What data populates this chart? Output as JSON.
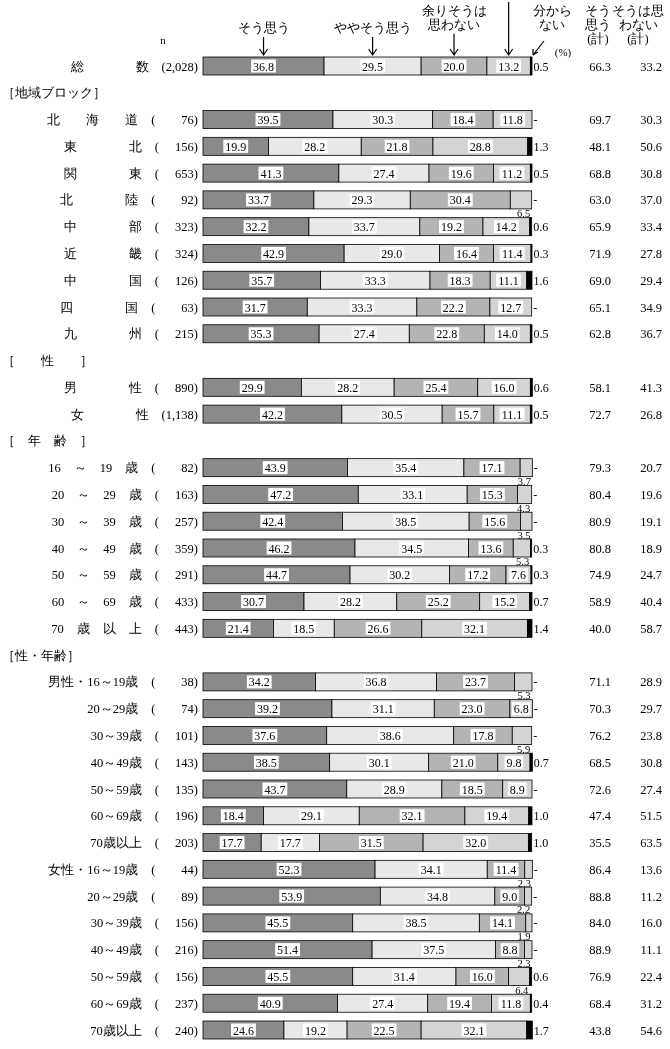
{
  "chart_data": {
    "type": "bar",
    "orientation": "horizontal",
    "stacked": true,
    "legend": "top",
    "xlim": [
      0,
      100
    ],
    "categories": [
      "総　　　　数　(2,028)",
      null,
      "北　　海　　道　(　　76)",
      "東　　　　北　(　 156)",
      "関　　　　東　(　 653)",
      "北　　　　陸　(　　92)",
      "中　　　　部　(　 323)",
      "近　　　　畿　(　 324)",
      "中　　　　国　(　 126)",
      "四　　　　国　(　　63)",
      "九　　　　州　(　 215)",
      null,
      "男　　　　性　(　 890)",
      "女　　　　性　(1,138)",
      null,
      "16　～　19　歳　(　　82)",
      "20　～　29　歳　(　 163)",
      "30　～　39　歳　(　 257)",
      "40　～　49　歳　(　 359)",
      "50　～　59　歳　(　 291)",
      "60　～　69　歳　(　 433)",
      "70　歳　以　上　(　 443)",
      null,
      "男性・16～19歳　(　　38)",
      "20～29歳　(　　74)",
      "30～39歳　(　 101)",
      "40～49歳　(　 143)",
      "50～59歳　(　 135)",
      "60～69歳　(　 196)",
      "70歳以上　(　 203)",
      "女性・16～19歳　(　　44)",
      "20～29歳　(　　89)",
      "30～39歳　(　 156)",
      "40～49歳　(　 216)",
      "50～59歳　(　 156)",
      "60～69歳　(　 237)",
      "70歳以上　(　 240)"
    ],
    "series": [
      {
        "name": "そう思う",
        "color": "#8a8a8a",
        "values": [
          36.8,
          null,
          39.5,
          19.9,
          41.3,
          33.7,
          32.2,
          42.9,
          35.7,
          31.7,
          35.3,
          null,
          29.9,
          42.2,
          null,
          43.9,
          47.2,
          42.4,
          46.2,
          44.7,
          30.7,
          21.4,
          null,
          34.2,
          39.2,
          37.6,
          38.5,
          43.7,
          18.4,
          17.7,
          52.3,
          53.9,
          45.5,
          51.4,
          45.5,
          40.9,
          24.6
        ],
        "value_labels": [
          "36.8",
          null,
          "39.5",
          "19.9",
          "41.3",
          "33.7",
          "32.2",
          "42.9",
          "35.7",
          "31.7",
          "35.3",
          null,
          "29.9",
          "42.2",
          null,
          "43.9",
          "47.2",
          "42.4",
          "46.2",
          "44.7",
          "30.7",
          "21.4",
          null,
          "34.2",
          "39.2",
          "37.6",
          "38.5",
          "43.7",
          "18.4",
          "17.7",
          "52.3",
          "53.9",
          "45.5",
          "51.4",
          "45.5",
          "40.9",
          "24.6"
        ]
      },
      {
        "name": "ややそう思う",
        "color": "#e8e8e8",
        "values": [
          29.5,
          null,
          30.3,
          28.2,
          27.4,
          29.3,
          33.7,
          29.0,
          33.3,
          33.3,
          27.4,
          null,
          28.2,
          30.5,
          null,
          35.4,
          33.1,
          38.5,
          34.5,
          30.2,
          28.2,
          18.5,
          null,
          36.8,
          31.1,
          38.6,
          30.1,
          28.9,
          29.1,
          17.7,
          34.1,
          34.8,
          38.5,
          37.5,
          31.4,
          27.4,
          19.2
        ],
        "value_labels": [
          "29.5",
          null,
          "30.3",
          "28.2",
          "27.4",
          "29.3",
          "33.7",
          "29.0",
          "33.3",
          "33.3",
          "27.4",
          null,
          "28.2",
          "30.5",
          null,
          "35.4",
          "33.1",
          "38.5",
          "34.5",
          "30.2",
          "28.2",
          "18.5",
          null,
          "36.8",
          "31.1",
          "38.6",
          "30.1",
          "28.9",
          "29.1",
          "17.7",
          "34.1",
          "34.8",
          "38.5",
          "37.5",
          "31.4",
          "27.4",
          "19.2"
        ]
      },
      {
        "name": "余りそうは思わない",
        "color": "#b4b4b4",
        "values": [
          20.0,
          null,
          18.4,
          21.8,
          19.6,
          30.4,
          19.2,
          16.4,
          18.3,
          22.2,
          22.8,
          null,
          25.4,
          15.7,
          null,
          17.1,
          15.3,
          15.6,
          13.6,
          17.2,
          25.2,
          26.6,
          null,
          23.7,
          23.0,
          17.8,
          21.0,
          18.5,
          32.1,
          31.5,
          11.4,
          9.0,
          14.1,
          8.8,
          16.0,
          19.4,
          22.5
        ],
        "value_labels": [
          "20.0",
          null,
          "18.4",
          "21.8",
          "19.6",
          "30.4",
          "19.2",
          "16.4",
          "18.3",
          "22.2",
          "22.8",
          null,
          "25.4",
          "15.7",
          null,
          "17.1",
          "15.3",
          "15.6",
          "13.6",
          "17.2",
          "25.2",
          "26.6",
          null,
          "23.7",
          "23.0",
          "17.8",
          "21.0",
          "18.5",
          "32.1",
          "31.5",
          "11.4",
          "9.0",
          "14.1",
          "8.8",
          "16.0",
          "19.4",
          "22.5"
        ]
      },
      {
        "color": "#d4d4d4",
        "values": [
          13.2,
          null,
          11.8,
          28.8,
          11.2,
          6.5,
          14.2,
          11.4,
          11.1,
          12.7,
          14.0,
          null,
          16.0,
          11.1,
          null,
          3.7,
          4.3,
          3.5,
          5.3,
          7.6,
          15.2,
          32.1,
          null,
          5.3,
          6.8,
          5.9,
          9.8,
          8.9,
          19.4,
          32.0,
          2.3,
          2.2,
          1.9,
          2.3,
          6.4,
          11.8,
          32.1
        ],
        "value_labels": [
          "13.2",
          null,
          "11.8",
          "28.8",
          "11.2",
          "6.5",
          "14.2",
          "11.4",
          "11.1",
          "12.7",
          "14.0",
          null,
          "16.0",
          "11.1",
          null,
          "3.7",
          "4.3",
          "3.5",
          "5.3",
          "7.6",
          "15.2",
          "32.1",
          null,
          "5.3",
          "6.8",
          "5.9",
          "9.8",
          "8.9",
          "19.4",
          "32.0",
          "2.3",
          "2.2",
          "1.9",
          "2.3",
          "6.4",
          "11.8",
          "32.1"
        ]
      },
      {
        "name": "分からない",
        "color": "#000000",
        "values": [
          0.5,
          null,
          0,
          1.3,
          0.5,
          0,
          0.6,
          0.3,
          1.6,
          0,
          0.5,
          null,
          0.6,
          0.5,
          null,
          0,
          0,
          0,
          0.3,
          0.3,
          0.7,
          1.4,
          null,
          0,
          0,
          0,
          0.7,
          0,
          1.0,
          1.0,
          0,
          0,
          0,
          0,
          0.6,
          0.4,
          1.7
        ],
        "value_labels": [
          "0.5",
          null,
          "-",
          "1.3",
          "0.5",
          "-",
          "0.6",
          "0.3",
          "1.6",
          "-",
          "0.5",
          null,
          "0.6",
          "0.5",
          null,
          "-",
          "-",
          "-",
          "0.3",
          "0.3",
          "0.7",
          "1.4",
          null,
          "-",
          "-",
          "-",
          "0.7",
          "-",
          "1.0",
          "1.0",
          "-",
          "-",
          "-",
          "-",
          "0.6",
          "0.4",
          "1.7"
        ]
      }
    ],
    "annotations": [
      "n",
      "(%)",
      "そう思う(計)",
      "そうは思わない(計)",
      "［地域ブロック］",
      "［　　性　　］",
      "［　年　齢　］",
      "［性・年齢］",
      "66.3",
      "33.2",
      "69.7",
      "30.3",
      "48.1",
      "50.6",
      "68.8",
      "30.8",
      "63.0",
      "37.0",
      "65.9",
      "33.4",
      "71.9",
      "27.8",
      "69.0",
      "29.4",
      "65.1",
      "34.9",
      "62.8",
      "36.7",
      "58.1",
      "41.3",
      "72.7",
      "26.8",
      "79.3",
      "20.7",
      "80.4",
      "19.6",
      "80.9",
      "19.1",
      "80.8",
      "18.9",
      "74.9",
      "24.7",
      "58.9",
      "40.4",
      "40.0",
      "58.7",
      "71.1",
      "28.9",
      "70.3",
      "29.7",
      "76.2",
      "23.8",
      "68.5",
      "30.8",
      "72.6",
      "27.4",
      "47.4",
      "51.5",
      "35.5",
      "63.5",
      "86.4",
      "13.6",
      "88.8",
      "11.2",
      "84.0",
      "16.0",
      "88.9",
      "11.1",
      "76.9",
      "22.4",
      "68.4",
      "31.2",
      "43.8",
      "54.6"
    ]
  }
}
